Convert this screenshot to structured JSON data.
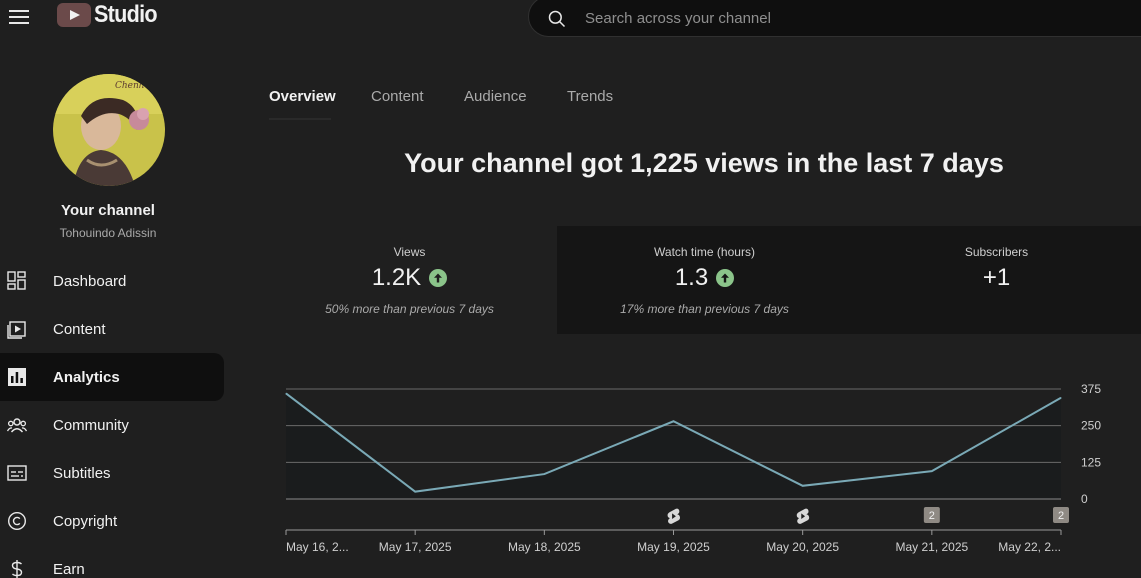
{
  "app": {
    "logo_text": "Studio",
    "search_placeholder": "Search across your channel"
  },
  "channel": {
    "title": "Your channel",
    "name": "Tohouindo Adissin"
  },
  "sidebar": {
    "items": [
      {
        "label": "Dashboard",
        "icon": "dashboard-icon",
        "active": false
      },
      {
        "label": "Content",
        "icon": "content-icon",
        "active": false
      },
      {
        "label": "Analytics",
        "icon": "analytics-icon",
        "active": true
      },
      {
        "label": "Community",
        "icon": "community-icon",
        "active": false
      },
      {
        "label": "Subtitles",
        "icon": "subtitles-icon",
        "active": false
      },
      {
        "label": "Copyright",
        "icon": "copyright-icon",
        "active": false
      },
      {
        "label": "Earn",
        "icon": "earn-icon",
        "active": false
      }
    ]
  },
  "tabs": [
    {
      "label": "Overview",
      "active": true
    },
    {
      "label": "Content",
      "active": false
    },
    {
      "label": "Audience",
      "active": false
    },
    {
      "label": "Trends",
      "active": false
    }
  ],
  "headline": "Your channel got 1,225 views in the last 7 days",
  "stats": [
    {
      "label": "Views",
      "value": "1.2K",
      "trend": "up",
      "comparison": "50% more than previous 7 days"
    },
    {
      "label": "Watch time (hours)",
      "value": "1.3",
      "trend": "up",
      "comparison": "17% more than previous 7 days"
    },
    {
      "label": "Subscribers",
      "value": "+1",
      "trend": "",
      "comparison": ""
    }
  ],
  "colors": {
    "background": "#1f1f1f",
    "line": "#7aa9b6",
    "trend_up": "#8bc48a"
  },
  "chart_data": {
    "type": "line",
    "x": [
      "May 16, 2...",
      "May 17, 2025",
      "May 18, 2025",
      "May 19, 2025",
      "May 20, 2025",
      "May 21, 2025",
      "May 22, 2..."
    ],
    "series": [
      {
        "values": [
          360,
          25,
          85,
          265,
          45,
          95,
          345
        ]
      }
    ],
    "yticks": [
      0,
      125,
      250,
      375
    ],
    "ylim": [
      0,
      375
    ],
    "grid": true,
    "markers": [
      {
        "x_index": 3,
        "kind": "shorts-icon",
        "label": ""
      },
      {
        "x_index": 4,
        "kind": "shorts-icon",
        "label": ""
      },
      {
        "x_index": 5,
        "kind": "count-badge",
        "label": "2"
      },
      {
        "x_index": 6,
        "kind": "count-badge",
        "label": "2"
      }
    ]
  }
}
